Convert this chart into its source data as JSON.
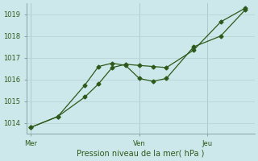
{
  "background_color": "#cce8ea",
  "grid_color": "#b8d4d6",
  "line_color": "#2d5a1b",
  "xlabel": "Pression niveau de la mer( hPa )",
  "ylim": [
    1013.5,
    1019.5
  ],
  "yticks": [
    1014,
    1015,
    1016,
    1017,
    1018,
    1019
  ],
  "xtick_labels": [
    "Mer",
    "Ven",
    "Jeu"
  ],
  "xtick_positions": [
    0,
    8,
    13
  ],
  "vline_positions": [
    0,
    8,
    13
  ],
  "xlim": [
    -0.3,
    16.5
  ],
  "line1_x": [
    0,
    2,
    4,
    5,
    6,
    7,
    8,
    9,
    10,
    12,
    14,
    15.8
  ],
  "line1_y": [
    1013.8,
    1014.3,
    1015.75,
    1016.6,
    1016.75,
    1016.65,
    1016.05,
    1015.92,
    1016.05,
    1017.5,
    1018.0,
    1019.2
  ],
  "line2_x": [
    0,
    2,
    4,
    5,
    6,
    7,
    8,
    9,
    10,
    12,
    14,
    15.8
  ],
  "line2_y": [
    1013.8,
    1014.3,
    1015.2,
    1015.8,
    1016.55,
    1016.7,
    1016.65,
    1016.6,
    1016.55,
    1017.35,
    1018.65,
    1019.28
  ],
  "marker_size": 2.5,
  "linewidth": 0.9,
  "tick_fontsize": 6,
  "xlabel_fontsize": 7
}
